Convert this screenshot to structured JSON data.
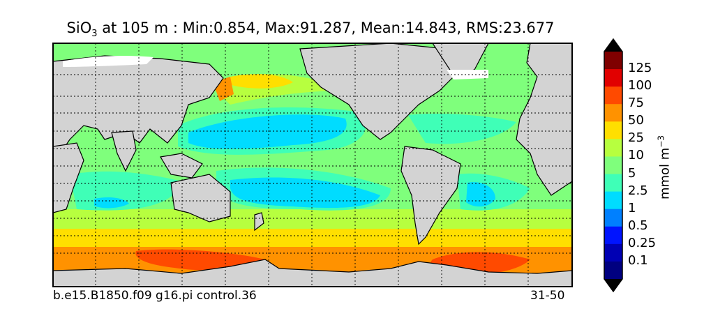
{
  "title": {
    "species_main": "SiO",
    "species_sub": "3",
    "text": " at 105 m : Min:0.854, Max:91.287, Mean:14.843, RMS:23.677"
  },
  "footer": {
    "case": "b.e15.B1850.f09 g16.pi control.36",
    "years": "31-50"
  },
  "colorbar": {
    "units_main": "mmol m",
    "units_sup": "−3",
    "ticks": [
      "125",
      "100",
      "75",
      "50",
      "25",
      "10",
      "5",
      "2.5",
      "1",
      "0.5",
      "0.25",
      "0.1"
    ],
    "colors": {
      "over": "#000000",
      "under": "#000000",
      "bins_top_to_bottom": [
        "#7f0000",
        "#e10000",
        "#ff4a00",
        "#ff9200",
        "#ffdf00",
        "#b7ff3f",
        "#7fff7c",
        "#3fffb7",
        "#00dcff",
        "#0080ff",
        "#0014ff",
        "#0000b4",
        "#000080"
      ]
    }
  },
  "map": {
    "land_color": "#d3d3d3",
    "ice_color": "#ffffff",
    "grid": "dotted"
  }
}
